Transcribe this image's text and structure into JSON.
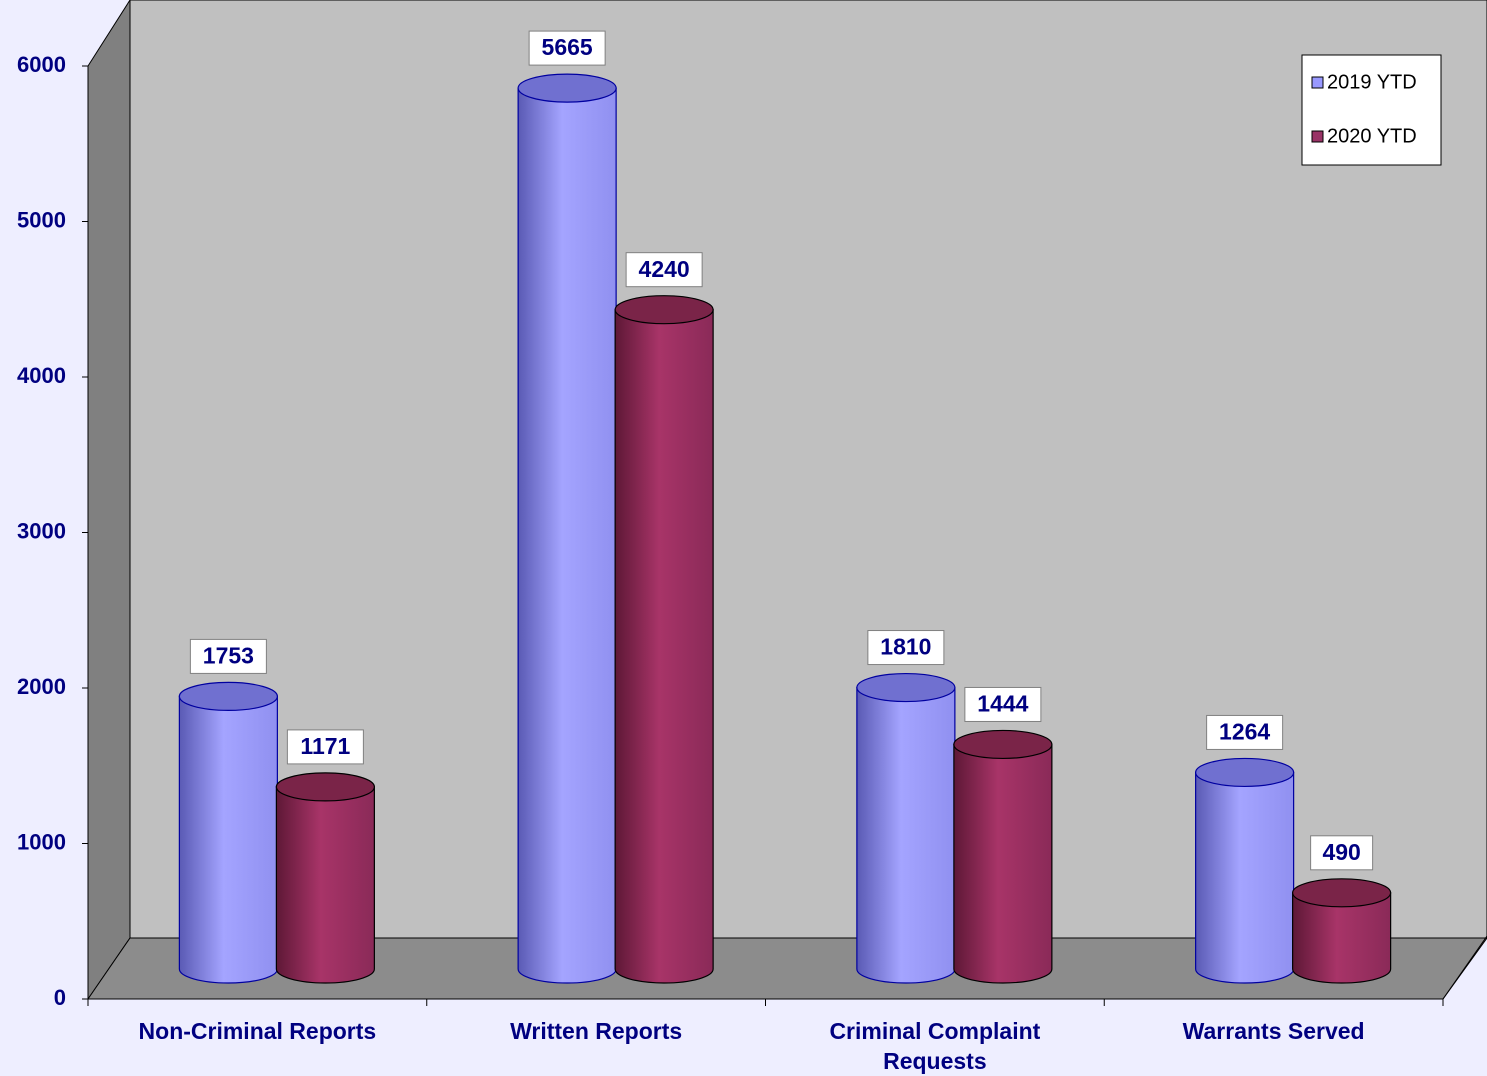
{
  "chart_data": {
    "type": "bar",
    "categories": [
      "Non-Criminal Reports",
      "Written Reports",
      "Criminal Complaint Requests",
      "Warrants Served"
    ],
    "series": [
      {
        "name": "2019 YTD",
        "color": "#9999ff",
        "values": [
          1753,
          5665,
          1810,
          1264
        ]
      },
      {
        "name": "2020 YTD",
        "color": "#993366",
        "values": [
          1171,
          4240,
          1444,
          490
        ]
      }
    ],
    "ylim": [
      0,
      6000
    ],
    "yticks": [
      0,
      1000,
      2000,
      3000,
      4000,
      5000,
      6000
    ],
    "legend": "top-right"
  }
}
